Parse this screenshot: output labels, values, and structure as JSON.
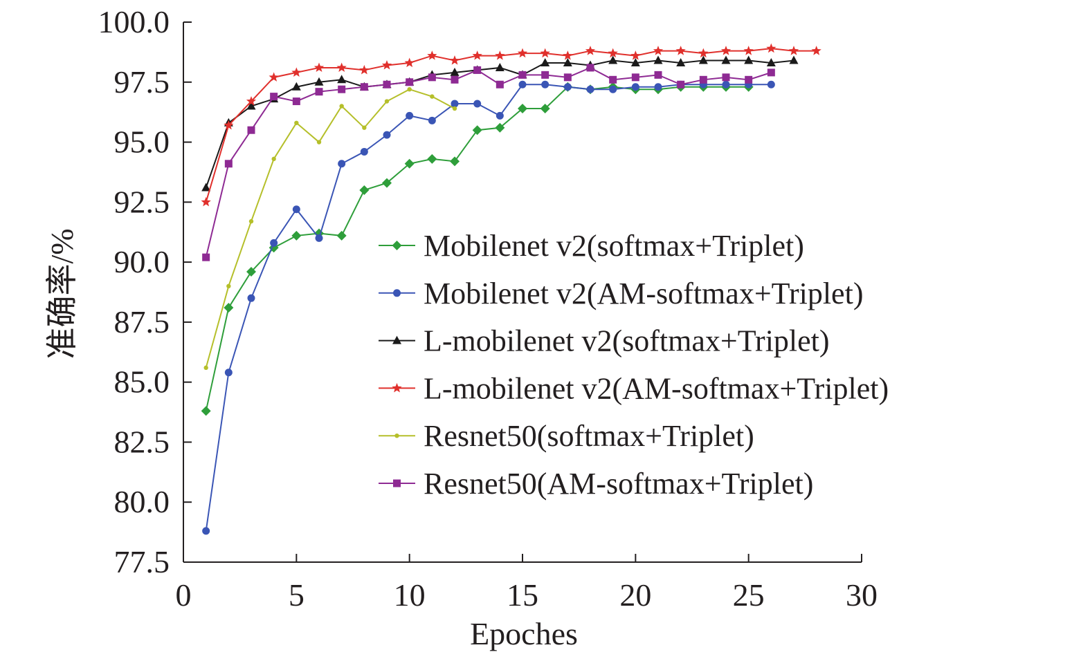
{
  "chart_data": {
    "type": "line",
    "title": "",
    "xlabel": "Epoches",
    "ylabel": "准确率/%",
    "xlim": [
      0,
      30
    ],
    "ylim": [
      77.5,
      100.0
    ],
    "xticks": [
      "0",
      "5",
      "10",
      "15",
      "20",
      "25",
      "30"
    ],
    "xtick_values": [
      0,
      5,
      10,
      15,
      20,
      25,
      30
    ],
    "yticks": [
      "77.5",
      "80.0",
      "82.5",
      "85.0",
      "87.5",
      "90.0",
      "92.5",
      "95.0",
      "97.5",
      "100.0"
    ],
    "ytick_values": [
      77.5,
      80.0,
      82.5,
      85.0,
      87.5,
      90.0,
      92.5,
      95.0,
      97.5,
      100.0
    ],
    "grid": false,
    "legend_position": "center-right",
    "series": [
      {
        "name": "Mobilenet v2(softmax+Triplet)",
        "color": "#2e9e3a",
        "marker": "diamond",
        "x": [
          1,
          2,
          3,
          4,
          5,
          6,
          7,
          8,
          9,
          10,
          11,
          12,
          13,
          14,
          15,
          16,
          17,
          18,
          19,
          20,
          21,
          22,
          23,
          24,
          25
        ],
        "values": [
          83.8,
          88.1,
          89.6,
          90.6,
          91.1,
          91.2,
          91.1,
          93.0,
          93.3,
          94.1,
          94.3,
          94.2,
          95.5,
          95.6,
          96.4,
          96.4,
          97.3,
          97.2,
          97.3,
          97.2,
          97.2,
          97.3,
          97.3,
          97.3,
          97.3
        ]
      },
      {
        "name": "Mobilenet v2(AM-softmax+Triplet)",
        "color": "#3a55b5",
        "marker": "circle",
        "x": [
          1,
          2,
          3,
          4,
          5,
          6,
          7,
          8,
          9,
          10,
          11,
          12,
          13,
          14,
          15,
          16,
          17,
          18,
          19,
          20,
          21,
          22,
          23,
          24,
          25,
          26
        ],
        "values": [
          78.8,
          85.4,
          88.5,
          90.8,
          92.2,
          91.0,
          94.1,
          94.6,
          95.3,
          96.1,
          95.9,
          96.6,
          96.6,
          96.1,
          97.4,
          97.4,
          97.3,
          97.2,
          97.2,
          97.3,
          97.3,
          97.4,
          97.4,
          97.4,
          97.4,
          97.4
        ]
      },
      {
        "name": "L-mobilenet v2(softmax+Triplet)",
        "color": "#1a1a1a",
        "marker": "triangle",
        "x": [
          1,
          2,
          3,
          4,
          5,
          6,
          7,
          8,
          9,
          10,
          11,
          12,
          13,
          14,
          15,
          16,
          17,
          18,
          19,
          20,
          21,
          22,
          23,
          24,
          25,
          26,
          27
        ],
        "values": [
          93.1,
          95.8,
          96.5,
          96.8,
          97.3,
          97.5,
          97.6,
          97.3,
          97.4,
          97.5,
          97.8,
          97.9,
          98.0,
          98.1,
          97.8,
          98.3,
          98.3,
          98.2,
          98.4,
          98.3,
          98.4,
          98.3,
          98.4,
          98.4,
          98.4,
          98.3,
          98.4
        ]
      },
      {
        "name": "L-mobilenet v2(AM-softmax+Triplet)",
        "color": "#e0302c",
        "marker": "star",
        "x": [
          1,
          2,
          3,
          4,
          5,
          6,
          7,
          8,
          9,
          10,
          11,
          12,
          13,
          14,
          15,
          16,
          17,
          18,
          19,
          20,
          21,
          22,
          23,
          24,
          25,
          26,
          27,
          28
        ],
        "values": [
          92.5,
          95.7,
          96.7,
          97.7,
          97.9,
          98.1,
          98.1,
          98.0,
          98.2,
          98.3,
          98.6,
          98.4,
          98.6,
          98.6,
          98.7,
          98.7,
          98.6,
          98.8,
          98.7,
          98.6,
          98.8,
          98.8,
          98.7,
          98.8,
          98.8,
          98.9,
          98.8,
          98.8
        ]
      },
      {
        "name": "Resnet50(softmax+Triplet)",
        "color": "#b5bf2a",
        "marker": "dot",
        "x": [
          1,
          2,
          3,
          4,
          5,
          6,
          7,
          8,
          9,
          10,
          11,
          12
        ],
        "values": [
          85.6,
          89.0,
          91.7,
          94.3,
          95.8,
          95.0,
          96.5,
          95.6,
          96.7,
          97.2,
          96.9,
          96.4
        ]
      },
      {
        "name": "Resnet50(AM-softmax+Triplet)",
        "color": "#8e2a93",
        "marker": "square",
        "x": [
          1,
          2,
          3,
          4,
          5,
          6,
          7,
          8,
          9,
          10,
          11,
          12,
          13,
          14,
          15,
          16,
          17,
          18,
          19,
          20,
          21,
          22,
          23,
          24,
          25,
          26
        ],
        "values": [
          90.2,
          94.1,
          95.5,
          96.9,
          96.7,
          97.1,
          97.2,
          97.3,
          97.4,
          97.5,
          97.7,
          97.6,
          98.0,
          97.4,
          97.8,
          97.8,
          97.7,
          98.1,
          97.6,
          97.7,
          97.8,
          97.4,
          97.6,
          97.7,
          97.6,
          97.9
        ]
      }
    ]
  }
}
